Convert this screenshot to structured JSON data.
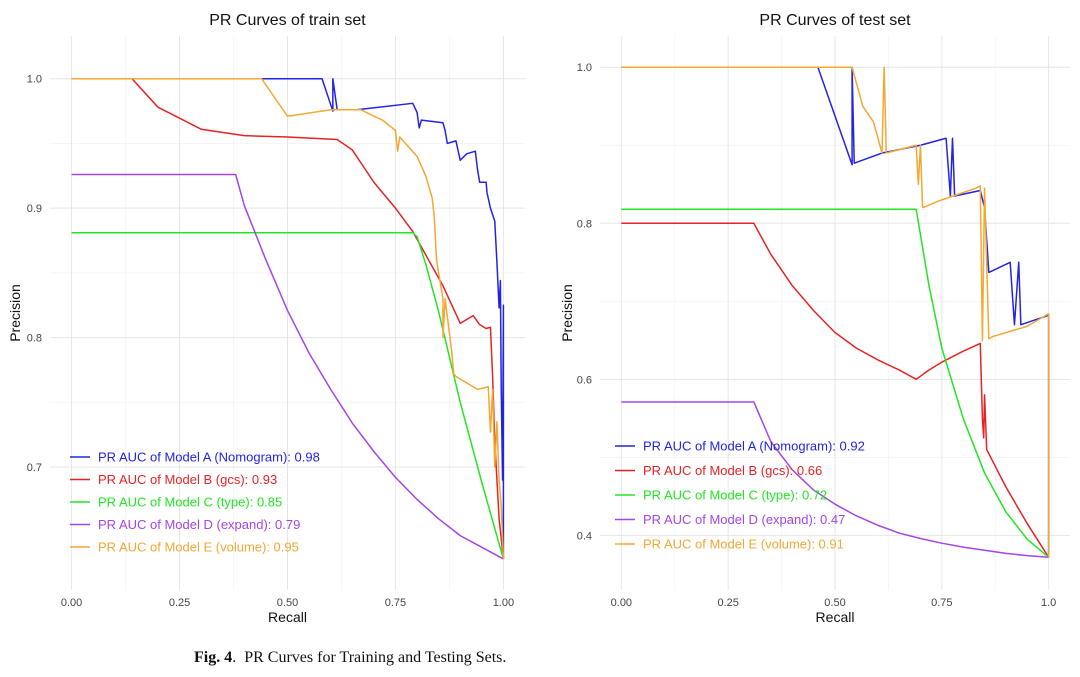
{
  "caption": {
    "label": "Fig. 4",
    "text": "PR Curves for Training and Testing Sets."
  },
  "chart_data": [
    {
      "type": "line",
      "title": "PR Curves of train set",
      "xlabel": "Recall",
      "ylabel": "Precision",
      "xlim": [
        -0.05,
        1.05
      ],
      "ylim": [
        0.605,
        1.033
      ],
      "xticks": [
        "0.00",
        "0.25",
        "0.50",
        "0.75",
        "1.00"
      ],
      "xtick_values": [
        0,
        0.25,
        0.5,
        0.75,
        1.0
      ],
      "yticks": [
        "0.7",
        "0.8",
        "0.9",
        "1.0"
      ],
      "ytick_values": [
        0.7,
        0.8,
        0.9,
        1.0
      ],
      "grid": true,
      "legend_position": "bottom-left",
      "series": [
        {
          "name": "PR AUC of Model A (Nomogram): 0.98",
          "color": "#2323e6",
          "points": [
            [
              0,
              1.0
            ],
            [
              0.58,
              1.0
            ],
            [
              0.605,
              0.975
            ],
            [
              0.605,
              1.0
            ],
            [
              0.615,
              0.976
            ],
            [
              0.66,
              0.976
            ],
            [
              0.79,
              0.981
            ],
            [
              0.8,
              0.974
            ],
            [
              0.805,
              0.962
            ],
            [
              0.81,
              0.968
            ],
            [
              0.86,
              0.966
            ],
            [
              0.865,
              0.96
            ],
            [
              0.87,
              0.95
            ],
            [
              0.89,
              0.952
            ],
            [
              0.9,
              0.937
            ],
            [
              0.915,
              0.942
            ],
            [
              0.935,
              0.944
            ],
            [
              0.94,
              0.93
            ],
            [
              0.945,
              0.92
            ],
            [
              0.96,
              0.92
            ],
            [
              0.962,
              0.912
            ],
            [
              0.97,
              0.9
            ],
            [
              0.98,
              0.89
            ],
            [
              0.985,
              0.858
            ],
            [
              0.99,
              0.823
            ],
            [
              0.993,
              0.844
            ],
            [
              0.995,
              0.76
            ],
            [
              0.998,
              0.69
            ],
            [
              1.0,
              0.825
            ],
            [
              1.0,
              0.68
            ],
            [
              1.0,
              0.629
            ]
          ]
        },
        {
          "name": "PR AUC of Model B (gcs): 0.93",
          "color": "#e62323",
          "points": [
            [
              0,
              1.0
            ],
            [
              0.14,
              1.0
            ],
            [
              0.2,
              0.978
            ],
            [
              0.3,
              0.961
            ],
            [
              0.4,
              0.956
            ],
            [
              0.5,
              0.955
            ],
            [
              0.615,
              0.953
            ],
            [
              0.65,
              0.945
            ],
            [
              0.7,
              0.92
            ],
            [
              0.75,
              0.9
            ],
            [
              0.79,
              0.882
            ],
            [
              0.86,
              0.84
            ],
            [
              0.9,
              0.811
            ],
            [
              0.93,
              0.817
            ],
            [
              0.945,
              0.81
            ],
            [
              0.96,
              0.807
            ],
            [
              0.97,
              0.808
            ],
            [
              0.975,
              0.77
            ],
            [
              0.98,
              0.72
            ],
            [
              0.985,
              0.69
            ],
            [
              0.99,
              0.66
            ],
            [
              1.0,
              0.629
            ]
          ]
        },
        {
          "name": "PR AUC of Model C (type): 0.85",
          "color": "#23e623",
          "points": [
            [
              0,
              0.881
            ],
            [
              0.79,
              0.881
            ],
            [
              0.8,
              0.878
            ],
            [
              0.82,
              0.857
            ],
            [
              0.85,
              0.82
            ],
            [
              0.9,
              0.75
            ],
            [
              0.95,
              0.688
            ],
            [
              1.0,
              0.629
            ]
          ]
        },
        {
          "name": "PR AUC of Model D (expand): 0.79",
          "color": "#a545e6",
          "points": [
            [
              0,
              0.926
            ],
            [
              0.38,
              0.926
            ],
            [
              0.4,
              0.902
            ],
            [
              0.45,
              0.86
            ],
            [
              0.5,
              0.821
            ],
            [
              0.55,
              0.788
            ],
            [
              0.6,
              0.76
            ],
            [
              0.65,
              0.734
            ],
            [
              0.7,
              0.712
            ],
            [
              0.75,
              0.692
            ],
            [
              0.8,
              0.675
            ],
            [
              0.85,
              0.66
            ],
            [
              0.9,
              0.647
            ],
            [
              0.95,
              0.638
            ],
            [
              1.0,
              0.629
            ]
          ]
        },
        {
          "name": "PR AUC of Model E (volume): 0.95",
          "color": "#f2a833",
          "points": [
            [
              0,
              1.0
            ],
            [
              0.44,
              1.0
            ],
            [
              0.5,
              0.971
            ],
            [
              0.6,
              0.976
            ],
            [
              0.67,
              0.976
            ],
            [
              0.72,
              0.968
            ],
            [
              0.75,
              0.96
            ],
            [
              0.755,
              0.944
            ],
            [
              0.76,
              0.955
            ],
            [
              0.8,
              0.94
            ],
            [
              0.82,
              0.925
            ],
            [
              0.835,
              0.908
            ],
            [
              0.84,
              0.893
            ],
            [
              0.845,
              0.86
            ],
            [
              0.86,
              0.83
            ],
            [
              0.86,
              0.8
            ],
            [
              0.865,
              0.83
            ],
            [
              0.88,
              0.79
            ],
            [
              0.885,
              0.772
            ],
            [
              0.89,
              0.77
            ],
            [
              0.9,
              0.768
            ],
            [
              0.94,
              0.76
            ],
            [
              0.965,
              0.762
            ],
            [
              0.97,
              0.727
            ],
            [
              0.975,
              0.76
            ],
            [
              0.98,
              0.7
            ],
            [
              0.985,
              0.735
            ],
            [
              0.99,
              0.69
            ],
            [
              0.995,
              0.67
            ],
            [
              1.0,
              0.629
            ]
          ]
        }
      ]
    },
    {
      "type": "line",
      "title": "PR Curves of test set",
      "xlabel": "Recall",
      "ylabel": "Precision",
      "xlim": [
        -0.05,
        1.05
      ],
      "ylim": [
        0.33,
        1.04
      ],
      "xticks": [
        "0.00",
        "0.25",
        "0.50",
        "0.75",
        "1.0"
      ],
      "xtick_values": [
        0,
        0.25,
        0.5,
        0.75,
        1.0
      ],
      "yticks": [
        "0.4",
        "0.6",
        "0.8",
        "1.0"
      ],
      "ytick_values": [
        0.4,
        0.6,
        0.8,
        1.0
      ],
      "grid": true,
      "legend_position": "bottom-left",
      "series": [
        {
          "name": "PR AUC of Model A (Nomogram): 0.92",
          "color": "#2323e6",
          "points": [
            [
              0,
              1.0
            ],
            [
              0.46,
              1.0
            ],
            [
              0.54,
              0.875
            ],
            [
              0.54,
              1.0
            ],
            [
              0.545,
              0.877
            ],
            [
              0.61,
              0.89
            ],
            [
              0.7,
              0.9
            ],
            [
              0.76,
              0.909
            ],
            [
              0.77,
              0.835
            ],
            [
              0.775,
              0.909
            ],
            [
              0.78,
              0.835
            ],
            [
              0.84,
              0.842
            ],
            [
              0.85,
              0.82
            ],
            [
              0.86,
              0.737
            ],
            [
              0.91,
              0.75
            ],
            [
              0.92,
              0.67
            ],
            [
              0.93,
              0.75
            ],
            [
              0.935,
              0.67
            ],
            [
              1.0,
              0.682
            ],
            [
              1.0,
              0.372
            ]
          ]
        },
        {
          "name": "PR AUC of Model B (gcs): 0.66",
          "color": "#e62323",
          "points": [
            [
              0,
              0.8
            ],
            [
              0.31,
              0.8
            ],
            [
              0.35,
              0.76
            ],
            [
              0.4,
              0.72
            ],
            [
              0.45,
              0.688
            ],
            [
              0.5,
              0.66
            ],
            [
              0.55,
              0.64
            ],
            [
              0.6,
              0.625
            ],
            [
              0.65,
              0.612
            ],
            [
              0.69,
              0.6
            ],
            [
              0.72,
              0.612
            ],
            [
              0.75,
              0.622
            ],
            [
              0.8,
              0.636
            ],
            [
              0.84,
              0.646
            ],
            [
              0.845,
              0.55
            ],
            [
              0.848,
              0.525
            ],
            [
              0.85,
              0.58
            ],
            [
              0.855,
              0.51
            ],
            [
              0.9,
              0.462
            ],
            [
              0.95,
              0.415
            ],
            [
              1.0,
              0.372
            ]
          ]
        },
        {
          "name": "PR AUC of Model C (type): 0.72",
          "color": "#23e623",
          "points": [
            [
              0,
              0.818
            ],
            [
              0.69,
              0.818
            ],
            [
              0.72,
              0.72
            ],
            [
              0.75,
              0.64
            ],
            [
              0.8,
              0.55
            ],
            [
              0.85,
              0.48
            ],
            [
              0.9,
              0.43
            ],
            [
              0.95,
              0.395
            ],
            [
              1.0,
              0.372
            ]
          ]
        },
        {
          "name": "PR AUC of Model D (expand): 0.47",
          "color": "#a545e6",
          "points": [
            [
              0,
              0.571
            ],
            [
              0.31,
              0.571
            ],
            [
              0.35,
              0.52
            ],
            [
              0.4,
              0.484
            ],
            [
              0.45,
              0.458
            ],
            [
              0.5,
              0.44
            ],
            [
              0.55,
              0.425
            ],
            [
              0.6,
              0.413
            ],
            [
              0.65,
              0.403
            ],
            [
              0.7,
              0.396
            ],
            [
              0.75,
              0.39
            ],
            [
              0.8,
              0.385
            ],
            [
              0.85,
              0.381
            ],
            [
              0.9,
              0.377
            ],
            [
              0.95,
              0.374
            ],
            [
              1.0,
              0.372
            ]
          ]
        },
        {
          "name": "PR AUC of Model E (volume): 0.91",
          "color": "#f2a833",
          "points": [
            [
              0,
              1.0
            ],
            [
              0.54,
              1.0
            ],
            [
              0.565,
              0.95
            ],
            [
              0.59,
              0.93
            ],
            [
              0.61,
              0.89
            ],
            [
              0.615,
              1.0
            ],
            [
              0.62,
              0.89
            ],
            [
              0.69,
              0.9
            ],
            [
              0.695,
              0.85
            ],
            [
              0.7,
              0.9
            ],
            [
              0.705,
              0.82
            ],
            [
              0.75,
              0.83
            ],
            [
              0.83,
              0.845
            ],
            [
              0.84,
              0.848
            ],
            [
              0.845,
              0.65
            ],
            [
              0.85,
              0.845
            ],
            [
              0.86,
              0.652
            ],
            [
              0.87,
              0.655
            ],
            [
              0.95,
              0.668
            ],
            [
              1.0,
              0.684
            ],
            [
              1.0,
              0.372
            ]
          ]
        }
      ]
    }
  ]
}
